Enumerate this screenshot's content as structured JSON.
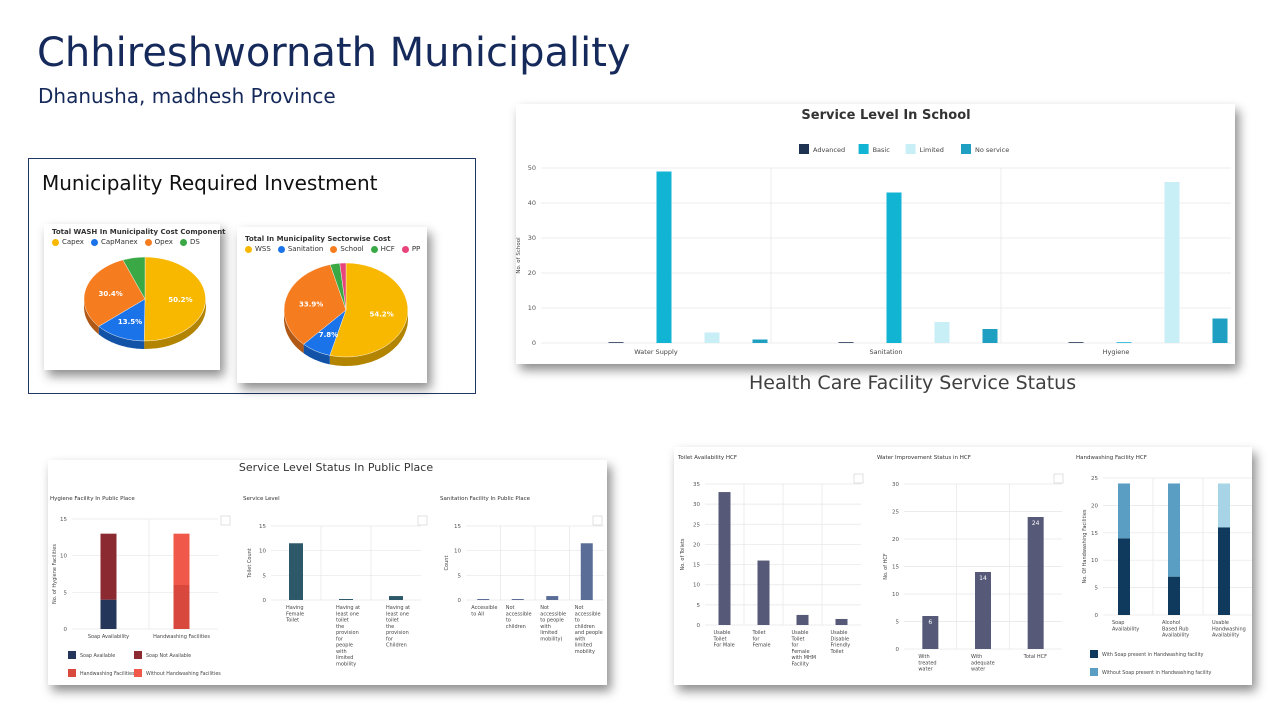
{
  "header": {
    "title": "Chhireshwornath Municipality",
    "subtitle": "Dhanusha, madhesh Province"
  },
  "investment": {
    "heading": "Municipality Required Investment"
  },
  "hcf_heading": "Health Care Facility Service Status",
  "chart_data": [
    {
      "id": "cost-component",
      "type": "pie",
      "title": "Total WASH In Municipality Cost Component",
      "legend": [
        "Capex",
        "CapManex",
        "Opex",
        "DS"
      ],
      "colors": [
        "#f8b800",
        "#1a73e8",
        "#f57c1f",
        "#3aa845"
      ],
      "values": [
        50.2,
        13.5,
        30.4,
        5.9
      ],
      "labels": [
        "50.2%",
        "13.5%",
        "30.4%",
        ""
      ]
    },
    {
      "id": "sectorwise-cost",
      "type": "pie",
      "title": "Total In Municipality Sectorwise Cost",
      "legend": [
        "WSS",
        "Sanitation",
        "School",
        "HCF",
        "PP"
      ],
      "colors": [
        "#f8b800",
        "#1a73e8",
        "#f57c1f",
        "#3aa845",
        "#e8437a"
      ],
      "values": [
        54.2,
        7.8,
        33.9,
        2.5,
        1.6
      ],
      "labels": [
        "54.2%",
        "7.8%",
        "33.9%",
        "",
        ""
      ]
    },
    {
      "id": "school-service",
      "type": "bar",
      "title": "Service Level In School",
      "categories": [
        "Water Supply",
        "Sanitation",
        "Hygiene"
      ],
      "series": [
        {
          "name": "Advanced",
          "color": "#1e3251",
          "values": [
            0,
            0,
            0
          ]
        },
        {
          "name": "Basic",
          "color": "#12b4d4",
          "values": [
            49,
            43,
            0
          ]
        },
        {
          "name": "Limited",
          "color": "#c8eef6",
          "values": [
            3,
            6,
            46
          ]
        },
        {
          "name": "No service",
          "color": "#1fa0c2",
          "values": [
            1,
            4,
            7
          ]
        }
      ],
      "ylabel": "No. of School",
      "ylim": [
        0,
        50
      ],
      "yticks": [
        0,
        10,
        20,
        30,
        40,
        50
      ]
    },
    {
      "id": "pp-hygiene",
      "type": "bar",
      "stacked": true,
      "group_title": "Service Level Status In Public Place",
      "title": "Hygiene Facility In Public Place",
      "categories": [
        "Soap Availability",
        "Handwashing Facilities"
      ],
      "series": [
        {
          "name": "Soap Available",
          "color": "#243659",
          "values": [
            4,
            0
          ]
        },
        {
          "name": "Soap Not Available",
          "color": "#8b2a30",
          "values": [
            9,
            0
          ]
        },
        {
          "name": "Handwashing Facilities",
          "color": "#d9483c",
          "values": [
            0,
            6
          ]
        },
        {
          "name": "Without Handwashing Facilities",
          "color": "#f0584a",
          "values": [
            0,
            7
          ]
        }
      ],
      "ylabel": "No. of Hygiene Facilities",
      "ylim": [
        0,
        15
      ],
      "yticks": [
        0,
        5,
        10,
        15
      ]
    },
    {
      "id": "pp-service",
      "type": "bar",
      "title": "Service Level",
      "categories": [
        "Having Female Toilet",
        "Having at least one toilet the provision for people with limited mobility",
        "Having at least one toilet the provision for Children"
      ],
      "values": [
        11.5,
        0.2,
        0.8
      ],
      "color": "#2d5869",
      "ylabel": "Toilet Count",
      "ylim": [
        0,
        15
      ],
      "yticks": [
        0,
        5,
        10,
        15
      ]
    },
    {
      "id": "pp-sanitation",
      "type": "bar",
      "title": "Sanitation Facility In Public Place",
      "categories": [
        "Accessible to All",
        "Not accessible to children",
        "Not accessible to people with limited mobility)",
        "Not accessible to children and people with limited mobility"
      ],
      "values": [
        0.2,
        0.2,
        0.8,
        11.5
      ],
      "color": "#5a6d96",
      "ylabel": "Count",
      "ylim": [
        0,
        15
      ],
      "yticks": [
        0,
        5,
        10,
        15
      ]
    },
    {
      "id": "hcf-toilet",
      "type": "bar",
      "title": "Toilet Availability HCF",
      "categories": [
        "Usable Toilet For Male",
        "Toilet for Female",
        "Usable Toilet for Female with MHM Facility",
        "Usable Disable Friendly Toilet"
      ],
      "values": [
        33,
        16,
        2.5,
        1.5
      ],
      "color": "#565a78",
      "ylabel": "No. of Toilets",
      "ylim": [
        0,
        35
      ],
      "yticks": [
        0,
        5,
        10,
        15,
        20,
        25,
        30,
        35
      ]
    },
    {
      "id": "hcf-water",
      "type": "bar",
      "title": "Water Improvement Status in HCF",
      "categories": [
        "With treated water",
        "With adequate water",
        "Total HCF"
      ],
      "values": [
        6,
        14,
        24
      ],
      "labels": [
        "6",
        "14",
        "24"
      ],
      "color": "#565a78",
      "ylabel": "No. of HCF",
      "ylim": [
        0,
        30
      ],
      "yticks": [
        0,
        5,
        10,
        15,
        20,
        25,
        30
      ]
    },
    {
      "id": "hcf-handwash",
      "type": "bar",
      "stacked": true,
      "title": "Handwashing Facility HCF",
      "categories": [
        "Soap Availability",
        "Alcohol Based Rub Availability",
        "Usable Handwashing Availability"
      ],
      "series": [
        {
          "name": "With Soap present in Handwashing facility",
          "color": "#0f3a5e",
          "values": [
            14,
            7,
            16
          ]
        },
        {
          "name": "Without Soap present in Handwashing facility",
          "color": "#5b9ec4",
          "values": [
            10,
            17,
            8
          ]
        }
      ],
      "segment_colors": [
        [
          "#0f3a5e",
          "#5b9ec4"
        ],
        [
          "#0f3a5e",
          "#5b9ec4"
        ],
        [
          "#0f3a5e",
          "#a7d4e6"
        ]
      ],
      "ylabel": "No. Of Handwashing Facilities",
      "ylim": [
        0,
        25
      ],
      "yticks": [
        0,
        5,
        10,
        15,
        20,
        25
      ]
    }
  ]
}
